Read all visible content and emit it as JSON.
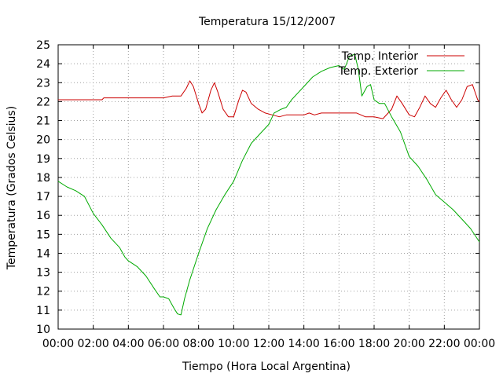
{
  "chart_data": {
    "type": "line",
    "title": "Temperatura 15/12/2007",
    "xlabel": "Tiempo (Hora Local Argentina)",
    "ylabel": "Temperatura (Grados Celsius)",
    "xlim": [
      0,
      24
    ],
    "ylim": [
      10,
      25
    ],
    "grid": true,
    "legend_position": "top-right",
    "x_ticks": [
      "00:00",
      "02:00",
      "04:00",
      "06:00",
      "08:00",
      "10:00",
      "12:00",
      "14:00",
      "16:00",
      "18:00",
      "20:00",
      "22:00",
      "00:00"
    ],
    "y_ticks": [
      "10",
      "11",
      "12",
      "13",
      "14",
      "15",
      "16",
      "17",
      "18",
      "19",
      "20",
      "21",
      "22",
      "23",
      "24",
      "25"
    ],
    "series": [
      {
        "name": "Temp. Interior",
        "color": "#cc0000",
        "points": [
          [
            0.0,
            22.1
          ],
          [
            2.5,
            22.1
          ],
          [
            2.6,
            22.2
          ],
          [
            6.0,
            22.2
          ],
          [
            6.5,
            22.3
          ],
          [
            7.0,
            22.3
          ],
          [
            7.3,
            22.7
          ],
          [
            7.5,
            23.1
          ],
          [
            7.7,
            22.8
          ],
          [
            8.0,
            21.9
          ],
          [
            8.2,
            21.4
          ],
          [
            8.4,
            21.6
          ],
          [
            8.7,
            22.6
          ],
          [
            8.9,
            23.0
          ],
          [
            9.1,
            22.5
          ],
          [
            9.4,
            21.6
          ],
          [
            9.7,
            21.2
          ],
          [
            10.0,
            21.2
          ],
          [
            10.3,
            22.1
          ],
          [
            10.5,
            22.6
          ],
          [
            10.7,
            22.5
          ],
          [
            11.0,
            21.9
          ],
          [
            11.4,
            21.6
          ],
          [
            11.8,
            21.4
          ],
          [
            12.2,
            21.3
          ],
          [
            12.6,
            21.2
          ],
          [
            13.0,
            21.3
          ],
          [
            14.0,
            21.3
          ],
          [
            14.3,
            21.4
          ],
          [
            14.6,
            21.3
          ],
          [
            15.0,
            21.4
          ],
          [
            16.0,
            21.4
          ],
          [
            17.0,
            21.4
          ],
          [
            17.5,
            21.2
          ],
          [
            18.0,
            21.2
          ],
          [
            18.5,
            21.1
          ],
          [
            19.0,
            21.6
          ],
          [
            19.3,
            22.3
          ],
          [
            19.6,
            21.9
          ],
          [
            20.0,
            21.3
          ],
          [
            20.3,
            21.2
          ],
          [
            20.6,
            21.7
          ],
          [
            20.9,
            22.3
          ],
          [
            21.2,
            21.9
          ],
          [
            21.5,
            21.7
          ],
          [
            21.8,
            22.2
          ],
          [
            22.1,
            22.6
          ],
          [
            22.4,
            22.1
          ],
          [
            22.7,
            21.7
          ],
          [
            23.0,
            22.1
          ],
          [
            23.3,
            22.8
          ],
          [
            23.6,
            22.9
          ],
          [
            23.9,
            22.1
          ],
          [
            24.0,
            22.0
          ]
        ]
      },
      {
        "name": "Temp. Exterior",
        "color": "#00aa00",
        "points": [
          [
            0.0,
            17.8
          ],
          [
            0.5,
            17.5
          ],
          [
            1.0,
            17.3
          ],
          [
            1.5,
            17.0
          ],
          [
            2.0,
            16.1
          ],
          [
            2.5,
            15.5
          ],
          [
            3.0,
            14.8
          ],
          [
            3.5,
            14.3
          ],
          [
            3.8,
            13.8
          ],
          [
            4.0,
            13.6
          ],
          [
            4.5,
            13.3
          ],
          [
            5.0,
            12.8
          ],
          [
            5.5,
            12.1
          ],
          [
            5.8,
            11.7
          ],
          [
            6.0,
            11.7
          ],
          [
            6.3,
            11.6
          ],
          [
            6.6,
            11.1
          ],
          [
            6.8,
            10.8
          ],
          [
            7.0,
            10.75
          ],
          [
            7.2,
            11.6
          ],
          [
            7.5,
            12.6
          ],
          [
            8.0,
            14.0
          ],
          [
            8.5,
            15.3
          ],
          [
            9.0,
            16.3
          ],
          [
            9.5,
            17.1
          ],
          [
            10.0,
            17.8
          ],
          [
            10.5,
            18.9
          ],
          [
            11.0,
            19.8
          ],
          [
            11.5,
            20.3
          ],
          [
            12.0,
            20.8
          ],
          [
            12.3,
            21.4
          ],
          [
            12.7,
            21.6
          ],
          [
            13.0,
            21.7
          ],
          [
            13.3,
            22.1
          ],
          [
            13.7,
            22.5
          ],
          [
            14.0,
            22.8
          ],
          [
            14.5,
            23.3
          ],
          [
            15.0,
            23.6
          ],
          [
            15.5,
            23.8
          ],
          [
            16.0,
            23.9
          ],
          [
            16.3,
            23.7
          ],
          [
            16.6,
            24.4
          ],
          [
            16.9,
            24.5
          ],
          [
            17.1,
            23.7
          ],
          [
            17.3,
            22.3
          ],
          [
            17.6,
            22.8
          ],
          [
            17.8,
            22.9
          ],
          [
            18.0,
            22.1
          ],
          [
            18.3,
            21.9
          ],
          [
            18.6,
            21.9
          ],
          [
            19.0,
            21.2
          ],
          [
            19.5,
            20.4
          ],
          [
            20.0,
            19.1
          ],
          [
            20.5,
            18.6
          ],
          [
            21.0,
            17.9
          ],
          [
            21.5,
            17.1
          ],
          [
            22.0,
            16.7
          ],
          [
            22.5,
            16.3
          ],
          [
            23.0,
            15.8
          ],
          [
            23.5,
            15.3
          ],
          [
            24.0,
            14.6
          ]
        ]
      }
    ]
  }
}
